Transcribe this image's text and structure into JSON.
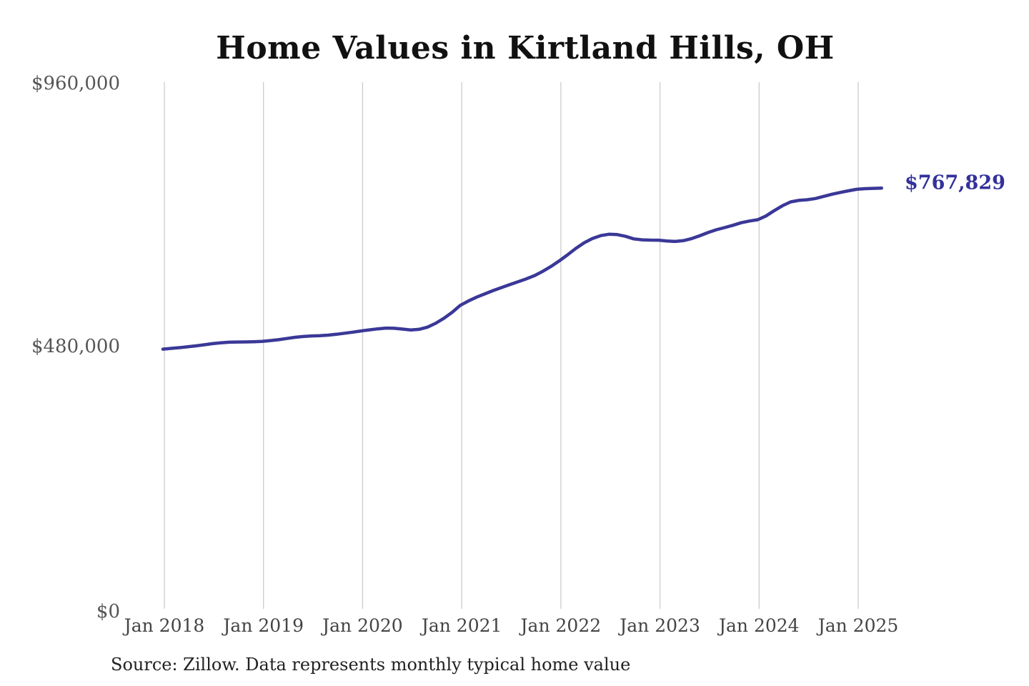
{
  "page": {
    "title": "Home Values in Kirtland Hills, OH",
    "source_note": "Source: Zillow. Data represents monthly typical home value"
  },
  "chart_data": {
    "type": "line",
    "title": "Home Values in Kirtland Hills, OH",
    "series_name": "Monthly typical home value",
    "x_start": "2018-01",
    "x_frequency": "monthly",
    "x_tick_labels": [
      "Jan 2018",
      "Jan 2019",
      "Jan 2020",
      "Jan 2021",
      "Jan 2022",
      "Jan 2023",
      "Jan 2024",
      "Jan 2025"
    ],
    "y_ticks": [
      {
        "label": "$960,000",
        "value": 960000
      },
      {
        "label": "$480,000",
        "value": 480000
      },
      {
        "label": "$0",
        "value": 0
      }
    ],
    "ylim": [
      0,
      960000
    ],
    "grid": "vertical-yearly",
    "legend": "none",
    "line_color": "#3a3897",
    "gridline_color": "#cccccc",
    "end_label": "$767,829",
    "end_value": 767829,
    "values": [
      474000,
      475400,
      476800,
      478300,
      480000,
      482000,
      484000,
      485600,
      486600,
      487100,
      487200,
      487600,
      488200,
      489600,
      491200,
      493500,
      495600,
      497100,
      498100,
      498600,
      499600,
      501100,
      503100,
      505100,
      507200,
      509200,
      511100,
      512500,
      512100,
      510600,
      509100,
      510100,
      514100,
      521100,
      530100,
      541100,
      554000,
      562000,
      569100,
      575100,
      581100,
      586400,
      591900,
      597100,
      602300,
      608300,
      616200,
      625200,
      635300,
      646300,
      658000,
      668100,
      676000,
      681200,
      683800,
      683100,
      679900,
      675300,
      673600,
      673100,
      672900,
      671500,
      670500,
      672000,
      675800,
      681000,
      686900,
      691900,
      695900,
      700000,
      704700,
      707900,
      710200,
      717000,
      726800,
      735800,
      742800,
      745600,
      746700,
      748900,
      752900,
      756800,
      760100,
      763100,
      765800,
      766900,
      767500,
      767829
    ]
  }
}
